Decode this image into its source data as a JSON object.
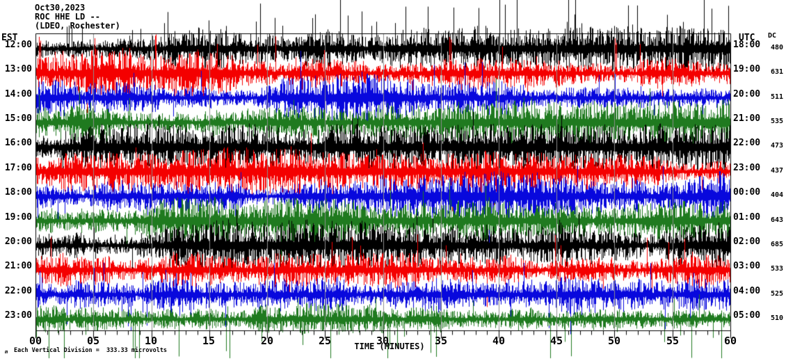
{
  "header": {
    "date": "Oct30,2023",
    "station": "ROC HHE LD --",
    "network": "(LDEO, Rochester)"
  },
  "axes": {
    "left_timezone": "EST",
    "right_timezone": "UTC",
    "dc_header": "DC",
    "x_label": "TIME (MINUTES)"
  },
  "footer": {
    "mark": "m",
    "scale_text": "Each Vertical Division =  333.33 microvolts"
  },
  "chart_data": {
    "type": "line",
    "subtype": "helicorder-seismogram",
    "title": "ROC HHE LD -- (LDEO, Rochester) Oct30,2023",
    "xlabel": "TIME (MINUTES)",
    "x_range_minutes": [
      0,
      60
    ],
    "major_tick_step_minutes": 5,
    "minor_tick_step_minutes": 1,
    "x_tick_labels": [
      "00",
      "05",
      "10",
      "15",
      "20",
      "25",
      "30",
      "35",
      "40",
      "45",
      "50",
      "55",
      "60"
    ],
    "grid": "vertical gray lines at each 5-minute division, drawn over traces",
    "legend_position": "none",
    "vertical_division_microvolts": 333.33,
    "trace_color_cycle": [
      "#000000",
      "#f40000",
      "#0808dd",
      "#1f7a1f"
    ],
    "grid_color": "#8c8c8c",
    "rows": [
      {
        "est": "12:00",
        "utc": "18:00",
        "dc": "480",
        "color": "#000000",
        "amp": 13,
        "upRate": 0.05,
        "upAmp": 44,
        "dnRate": 0.012,
        "dnAmp": 26,
        "quietUntil": 240,
        "seed": 11
      },
      {
        "est": "13:00",
        "utc": "19:00",
        "dc": "631",
        "color": "#f40000",
        "amp": 13,
        "upRate": 0.02,
        "upAmp": 38,
        "dnRate": 0.012,
        "dnAmp": 28,
        "quietUntil": 0,
        "seed": 22
      },
      {
        "est": "14:00",
        "utc": "20:00",
        "dc": "511",
        "color": "#0808dd",
        "amp": 13,
        "upRate": 0.012,
        "upAmp": 32,
        "dnRate": 0.012,
        "dnAmp": 32,
        "quietUntil": 0,
        "seed": 33
      },
      {
        "est": "15:00",
        "utc": "21:00",
        "dc": "535",
        "color": "#1f7a1f",
        "amp": 12,
        "upRate": 0.01,
        "upAmp": 30,
        "dnRate": 0.01,
        "dnAmp": 30,
        "quietUntil": 0,
        "seed": 44
      },
      {
        "est": "16:00",
        "utc": "22:00",
        "dc": "473",
        "color": "#000000",
        "amp": 11,
        "upRate": 0.01,
        "upAmp": 28,
        "dnRate": 0.01,
        "dnAmp": 26,
        "quietUntil": 0,
        "seed": 55
      },
      {
        "est": "17:00",
        "utc": "23:00",
        "dc": "437",
        "color": "#f40000",
        "amp": 12,
        "upRate": 0.014,
        "upAmp": 34,
        "dnRate": 0.012,
        "dnAmp": 28,
        "quietUntil": 0,
        "seed": 66
      },
      {
        "est": "18:00",
        "utc": "00:00",
        "dc": "404",
        "color": "#0808dd",
        "amp": 12,
        "upRate": 0.01,
        "upAmp": 30,
        "dnRate": 0.012,
        "dnAmp": 30,
        "quietUntil": 0,
        "seed": 77
      },
      {
        "est": "19:00",
        "utc": "01:00",
        "dc": "643",
        "color": "#1f7a1f",
        "amp": 11,
        "upRate": 0.01,
        "upAmp": 28,
        "dnRate": 0.01,
        "dnAmp": 30,
        "quietUntil": 0,
        "seed": 88
      },
      {
        "est": "20:00",
        "utc": "02:00",
        "dc": "685",
        "color": "#000000",
        "amp": 12,
        "upRate": 0.01,
        "upAmp": 30,
        "dnRate": 0.01,
        "dnAmp": 30,
        "quietUntil": 0,
        "seed": 99
      },
      {
        "est": "21:00",
        "utc": "03:00",
        "dc": "533",
        "color": "#f40000",
        "amp": 12,
        "upRate": 0.016,
        "upAmp": 38,
        "dnRate": 0.012,
        "dnAmp": 30,
        "quietUntil": 0,
        "seed": 110
      },
      {
        "est": "22:00",
        "utc": "04:00",
        "dc": "525",
        "color": "#0808dd",
        "amp": 12,
        "upRate": 0.01,
        "upAmp": 30,
        "dnRate": 0.014,
        "dnAmp": 34,
        "quietUntil": 0,
        "seed": 121
      },
      {
        "est": "23:00",
        "utc": "05:00",
        "dc": "510",
        "color": "#1f7a1f",
        "amp": 12,
        "upRate": 0.01,
        "upAmp": 26,
        "dnRate": 0.028,
        "dnAmp": 44,
        "quietUntil": 0,
        "seed": 132
      }
    ]
  }
}
